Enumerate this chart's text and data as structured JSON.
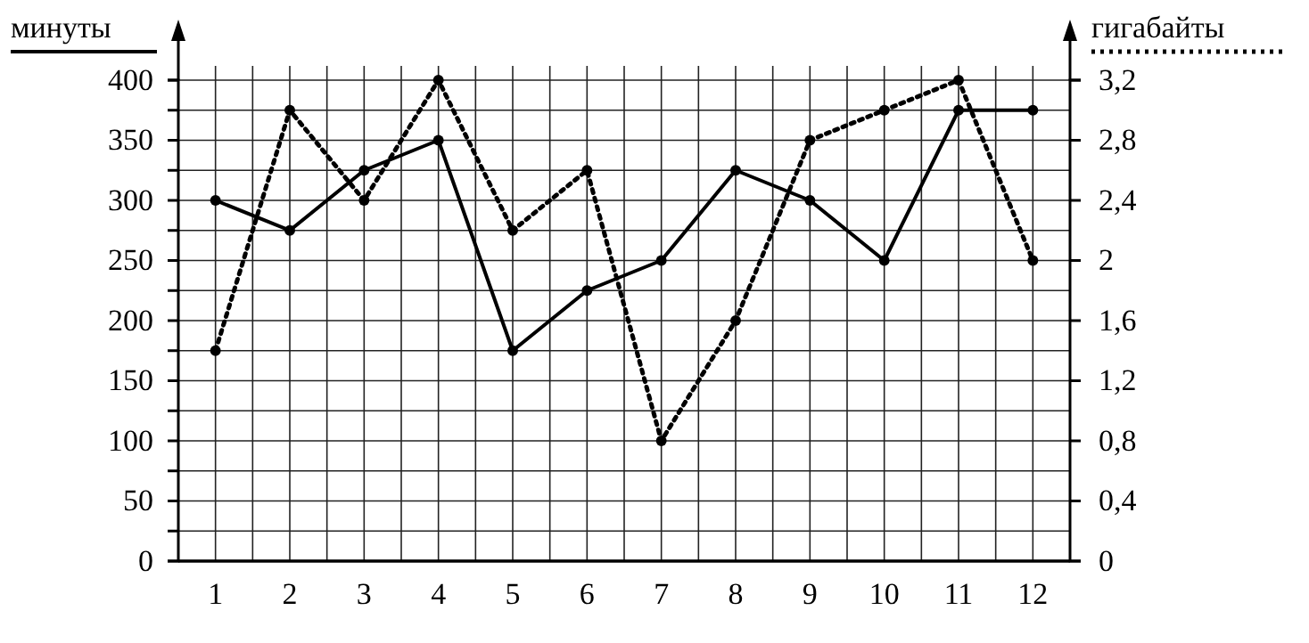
{
  "chart_data": {
    "type": "line",
    "ylabel": "минуты",
    "y2label": "гигабайты",
    "xlim": [
      0.5,
      12.5
    ],
    "x": [
      1,
      2,
      3,
      4,
      5,
      6,
      7,
      8,
      9,
      10,
      11,
      12
    ],
    "xticks": [
      1,
      {
        "value": 1.5,
        "label": null
      },
      2,
      {
        "value": 2.5,
        "label": null
      },
      3,
      {
        "value": 3.5,
        "label": null
      },
      4,
      {
        "value": 4.5,
        "label": null
      },
      5,
      {
        "value": 5.5,
        "label": null
      },
      6,
      {
        "value": 6.5,
        "label": null
      },
      7,
      {
        "value": 7.5,
        "label": null
      },
      8,
      {
        "value": 8.5,
        "label": null
      },
      9,
      {
        "value": 9.5,
        "label": null
      },
      10,
      {
        "value": 10.5,
        "label": null
      },
      11,
      {
        "value": 11.5,
        "label": null
      },
      12
    ],
    "ylim": [
      0,
      400
    ],
    "yticks": [
      0,
      {
        "value": 25,
        "label": null
      },
      50,
      {
        "value": 75,
        "label": null
      },
      100,
      {
        "value": 125,
        "label": null
      },
      150,
      {
        "value": 175,
        "label": null
      },
      200,
      {
        "value": 225,
        "label": null
      },
      250,
      {
        "value": 275,
        "label": null
      },
      300,
      {
        "value": 325,
        "label": null
      },
      350,
      {
        "value": 375,
        "label": null
      },
      400
    ],
    "y2lim": [
      0,
      3.2
    ],
    "y2ticks": [
      0,
      {
        "value": 0.4,
        "label": "0,4"
      },
      {
        "value": 0.8,
        "label": "0,8"
      },
      {
        "value": 1.2,
        "label": "1,2"
      },
      {
        "value": 1.6,
        "label": "1,6"
      },
      2,
      {
        "value": 2.4,
        "label": "2,4"
      },
      {
        "value": 2.8,
        "label": "2,8"
      },
      {
        "value": 3.2,
        "label": "3,2"
      }
    ],
    "grid": true,
    "marker": "circle",
    "series": [
      {
        "color": "#000000",
        "line_style": "solid",
        "values": [
          300,
          275,
          325,
          350,
          175,
          225,
          250,
          325,
          300,
          250,
          375,
          375
        ]
      },
      {
        "color": "#000000",
        "line_style": "dotted",
        "axis": "y2",
        "values": [
          1.4,
          3.0,
          2.4,
          3.2,
          2.2,
          2.6,
          0.8,
          1.6,
          2.8,
          3.0,
          3.2,
          2.0
        ]
      }
    ]
  }
}
